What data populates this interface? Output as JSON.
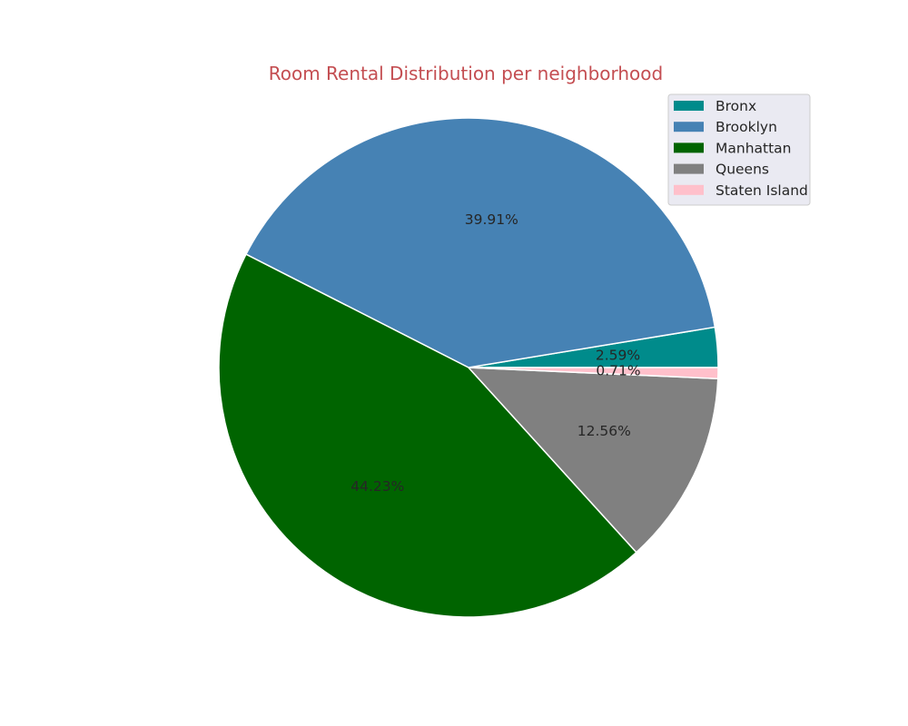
{
  "chart_data": {
    "type": "pie",
    "title": "Room Rental Distribution per neighborhood",
    "title_color": "#c44e52",
    "start_angle_deg": 0,
    "direction": "counterclockwise",
    "legend_position": "top-right",
    "slices": [
      {
        "label": "Bronx",
        "value": 2.59,
        "display": "2.59%",
        "color": "#008b8b"
      },
      {
        "label": "Brooklyn",
        "value": 39.91,
        "display": "39.91%",
        "color": "#4682b4"
      },
      {
        "label": "Manhattan",
        "value": 44.23,
        "display": "44.23%",
        "color": "#006400"
      },
      {
        "label": "Queens",
        "value": 12.56,
        "display": "12.56%",
        "color": "#808080"
      },
      {
        "label": "Staten Island",
        "value": 0.71,
        "display": "0.71%",
        "color": "#ffc0cb"
      }
    ]
  }
}
